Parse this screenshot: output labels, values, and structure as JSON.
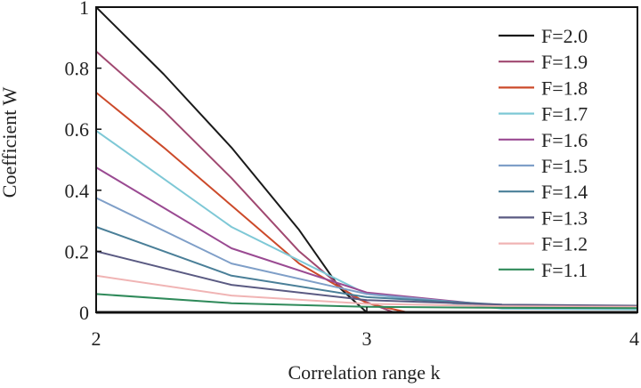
{
  "chart_data": {
    "type": "line",
    "xlabel": "Correlation range k",
    "ylabel": "Coefficient W",
    "xlim": [
      2,
      4
    ],
    "ylim": [
      0,
      1
    ],
    "x_ticks": [
      "2",
      "3",
      "4"
    ],
    "y_ticks": [
      "0",
      "0.2",
      "0.4",
      "0.6",
      "0.8",
      "1"
    ],
    "legend_position": "right",
    "grid": false,
    "series": [
      {
        "name": "F=2.0",
        "color": "#1a1a1a",
        "x": [
          2.0,
          2.25,
          2.5,
          2.75,
          2.9,
          3.0
        ],
        "y": [
          1.0,
          0.78,
          0.54,
          0.27,
          0.08,
          0.0
        ]
      },
      {
        "name": "F=1.9",
        "color": "#a04870",
        "x": [
          2.0,
          2.25,
          2.5,
          2.75,
          2.95,
          3.1
        ],
        "y": [
          0.855,
          0.66,
          0.44,
          0.2,
          0.05,
          0.0
        ]
      },
      {
        "name": "F=1.8",
        "color": "#cc4a2a",
        "x": [
          2.0,
          2.25,
          2.5,
          2.75,
          3.0,
          3.15
        ],
        "y": [
          0.72,
          0.54,
          0.35,
          0.16,
          0.03,
          0.0
        ]
      },
      {
        "name": "F=1.7",
        "color": "#7ec8d6",
        "x": [
          2.0,
          2.5,
          3.0,
          3.5,
          4.0
        ],
        "y": [
          0.595,
          0.28,
          0.06,
          0.012,
          0.01
        ]
      },
      {
        "name": "F=1.6",
        "color": "#9a4a92",
        "x": [
          2.0,
          2.5,
          3.0,
          3.5,
          4.0
        ],
        "y": [
          0.475,
          0.21,
          0.065,
          0.02,
          0.015
        ]
      },
      {
        "name": "F=1.5",
        "color": "#7f9fc8",
        "x": [
          2.0,
          2.5,
          3.0,
          3.5,
          4.0
        ],
        "y": [
          0.375,
          0.16,
          0.06,
          0.02,
          0.015
        ]
      },
      {
        "name": "F=1.4",
        "color": "#4a7f98",
        "x": [
          2.0,
          2.5,
          3.0,
          3.5,
          4.0
        ],
        "y": [
          0.28,
          0.12,
          0.05,
          0.025,
          0.02
        ]
      },
      {
        "name": "F=1.3",
        "color": "#5a5a82",
        "x": [
          2.0,
          2.5,
          3.0,
          3.5,
          4.0
        ],
        "y": [
          0.2,
          0.09,
          0.04,
          0.025,
          0.022
        ]
      },
      {
        "name": "F=1.2",
        "color": "#f0b4b4",
        "x": [
          2.0,
          2.5,
          3.0,
          3.5,
          4.0
        ],
        "y": [
          0.12,
          0.055,
          0.028,
          0.02,
          0.018
        ]
      },
      {
        "name": "F=1.1",
        "color": "#2f8a5a",
        "x": [
          2.0,
          2.5,
          3.0,
          3.5,
          4.0
        ],
        "y": [
          0.06,
          0.03,
          0.018,
          0.015,
          0.014
        ]
      }
    ]
  }
}
